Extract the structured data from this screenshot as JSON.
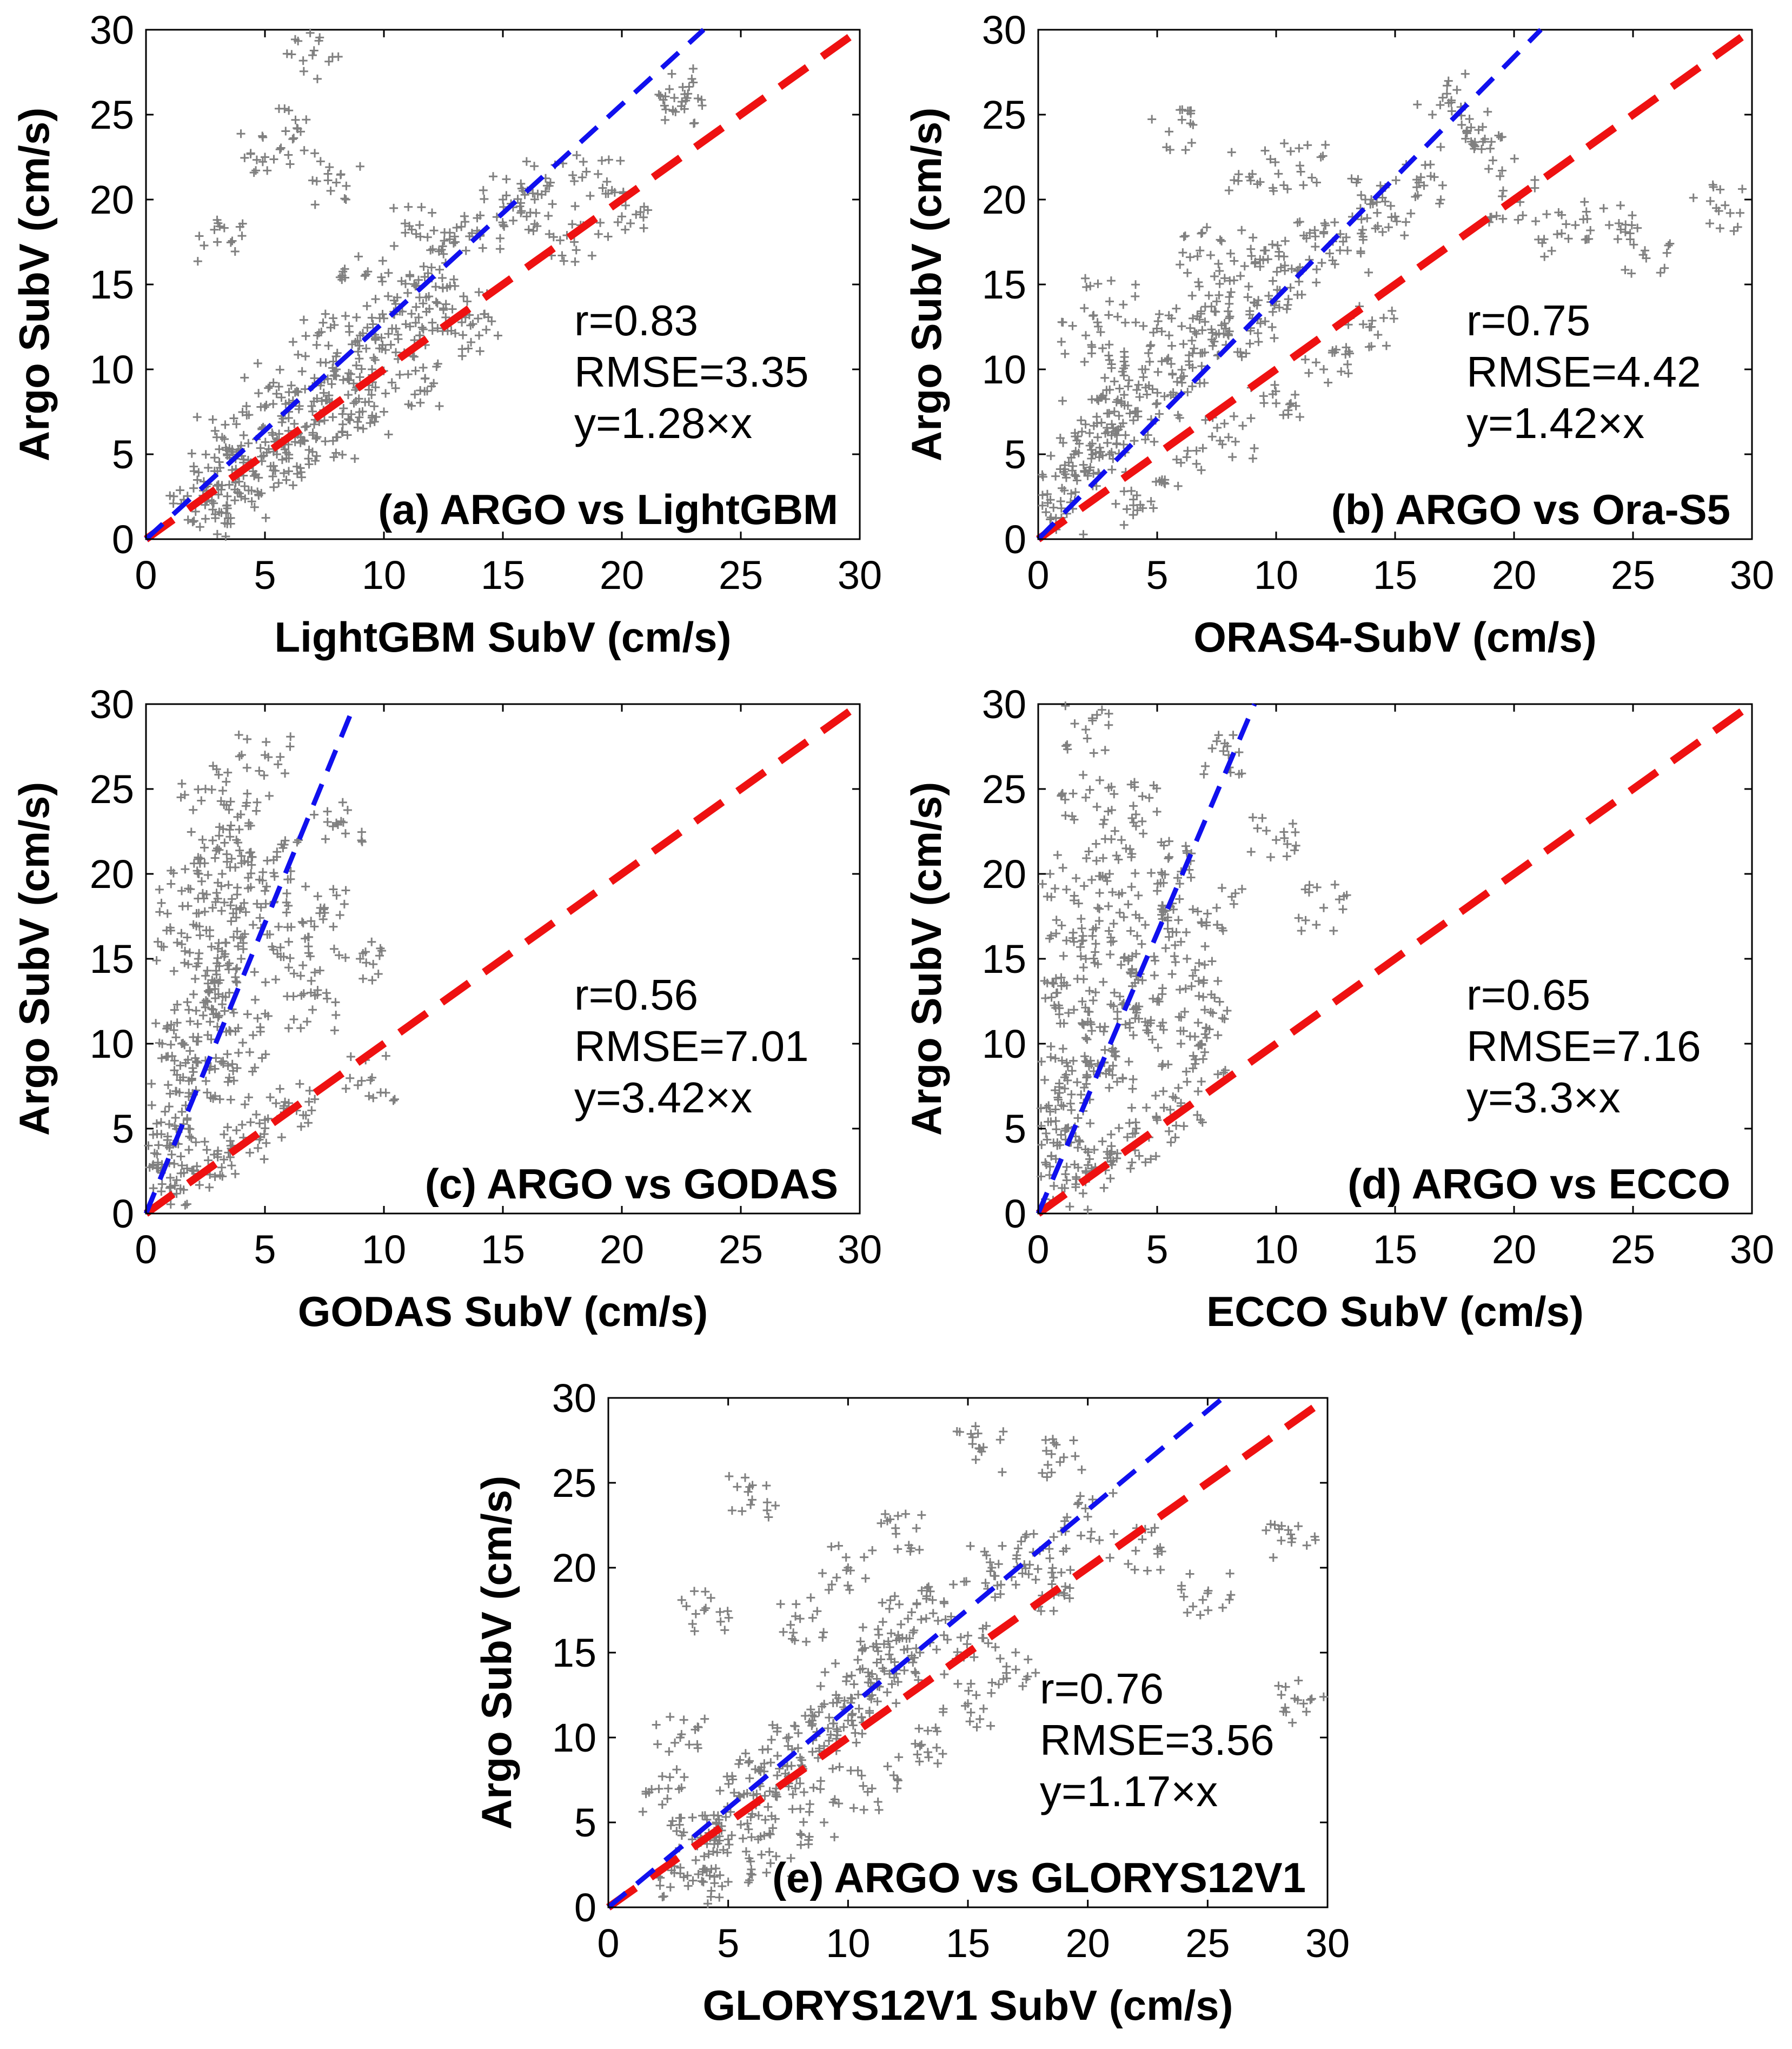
{
  "chart_data": [
    {
      "id": "a",
      "type": "scatter",
      "title": "(a) ARGO vs LightGBM",
      "xlabel": "LightGBM SubV (cm/s)",
      "ylabel": "Argo SubV (cm/s)",
      "xlim": [
        0,
        30
      ],
      "ylim": [
        0,
        30
      ],
      "xticks": [
        "0",
        "5",
        "10",
        "15",
        "20",
        "25",
        "30"
      ],
      "yticks": [
        "0",
        "5",
        "10",
        "15",
        "20",
        "25",
        "30"
      ],
      "stats": {
        "r": "r=0.83",
        "rmse": "RMSE=3.35",
        "fit": "y=1.28×x"
      },
      "fit_slope": 1.28,
      "identity_slope": 1.0,
      "colors": {
        "points": "#808080",
        "fit": "#1010ee",
        "identity": "#ee1111"
      },
      "points": [
        [
          2.0,
          3.0
        ],
        [
          2.5,
          2.2
        ],
        [
          3.0,
          4.0
        ],
        [
          3.5,
          3.2
        ],
        [
          4.0,
          5.5
        ],
        [
          4.5,
          4.0
        ],
        [
          5.0,
          6.5
        ],
        [
          5.5,
          5.0
        ],
        [
          6.0,
          7.5
        ],
        [
          6.5,
          6.0
        ],
        [
          7.0,
          9.0
        ],
        [
          7.5,
          7.0
        ],
        [
          8.0,
          10.0
        ],
        [
          8.5,
          8.5
        ],
        [
          9.0,
          12.0
        ],
        [
          9.5,
          10.0
        ],
        [
          10.0,
          13.0
        ],
        [
          10.5,
          11.0
        ],
        [
          11.0,
          14.5
        ],
        [
          11.5,
          12.0
        ],
        [
          12.0,
          16.0
        ],
        [
          12.5,
          13.5
        ],
        [
          13.0,
          17.5
        ],
        [
          13.5,
          14.0
        ],
        [
          14.0,
          18.0
        ],
        [
          15.0,
          20.0
        ],
        [
          16.0,
          19.0
        ],
        [
          17.0,
          21.0
        ],
        [
          18.0,
          17.5
        ],
        [
          19.0,
          21.5
        ],
        [
          20.0,
          19.0
        ],
        [
          22.0,
          26.5
        ],
        [
          22.5,
          25.5
        ],
        [
          3.0,
          17.5
        ],
        [
          5.0,
          22.5
        ],
        [
          6.5,
          24.0
        ],
        [
          7.0,
          28.5
        ],
        [
          8.0,
          21.0
        ],
        [
          2.5,
          1.2
        ],
        [
          4.0,
          2.5
        ],
        [
          6.0,
          4.0
        ],
        [
          8.0,
          6.0
        ],
        [
          10.0,
          7.5
        ],
        [
          12.0,
          9.0
        ],
        [
          14.0,
          12.0
        ],
        [
          3.2,
          6.0
        ],
        [
          5.2,
          9.0
        ],
        [
          7.2,
          12.0
        ],
        [
          9.2,
          15.5
        ],
        [
          11.5,
          18.5
        ]
      ]
    },
    {
      "id": "b",
      "type": "scatter",
      "title": "(b) ARGO vs Ora-S5",
      "xlabel": "ORAS4-SubV (cm/s)",
      "ylabel": "Argo SubV (cm/s)",
      "xlim": [
        0,
        30
      ],
      "ylim": [
        0,
        30
      ],
      "xticks": [
        "0",
        "5",
        "10",
        "15",
        "20",
        "25",
        "30"
      ],
      "yticks": [
        "0",
        "5",
        "10",
        "15",
        "20",
        "25",
        "30"
      ],
      "stats": {
        "r": "r=0.75",
        "rmse": "RMSE=4.42",
        "fit": "y=1.42×x"
      },
      "fit_slope": 1.42,
      "identity_slope": 1.0,
      "colors": {
        "points": "#808080",
        "fit": "#1010ee",
        "identity": "#ee1111"
      },
      "points": [
        [
          1.0,
          3.0
        ],
        [
          1.5,
          5.0
        ],
        [
          2.0,
          4.0
        ],
        [
          2.5,
          6.0
        ],
        [
          3.0,
          5.0
        ],
        [
          3.5,
          8.0
        ],
        [
          4.0,
          7.0
        ],
        [
          4.5,
          10.0
        ],
        [
          5.0,
          8.0
        ],
        [
          5.5,
          12.0
        ],
        [
          6.0,
          9.5
        ],
        [
          6.5,
          13.0
        ],
        [
          7.0,
          11.0
        ],
        [
          7.5,
          14.0
        ],
        [
          8.0,
          12.0
        ],
        [
          8.5,
          15.5
        ],
        [
          9.0,
          13.0
        ],
        [
          9.5,
          17.0
        ],
        [
          10.0,
          14.0
        ],
        [
          11.0,
          16.0
        ],
        [
          12.0,
          18.0
        ],
        [
          13.0,
          17.0
        ],
        [
          14.0,
          20.0
        ],
        [
          15.0,
          19.0
        ],
        [
          16.0,
          21.0
        ],
        [
          17.0,
          26.0
        ],
        [
          18.0,
          24.0
        ],
        [
          19.0,
          23.0
        ],
        [
          20.0,
          20.0
        ],
        [
          22.0,
          18.0
        ],
        [
          24.0,
          18.5
        ],
        [
          25.5,
          17.0
        ],
        [
          28.5,
          19.5
        ],
        [
          5.5,
          24.0
        ],
        [
          2.0,
          12.0
        ],
        [
          3.0,
          14.0
        ],
        [
          4.0,
          2.0
        ],
        [
          6.0,
          4.5
        ],
        [
          8.0,
          6.0
        ],
        [
          10.0,
          8.0
        ],
        [
          12.0,
          10.0
        ],
        [
          14.0,
          12.5
        ],
        [
          1.2,
          1.5
        ],
        [
          1.8,
          7.0
        ],
        [
          2.8,
          9.5
        ],
        [
          6.8,
          17.0
        ],
        [
          9.0,
          21.5
        ],
        [
          11.0,
          22.0
        ]
      ]
    },
    {
      "id": "c",
      "type": "scatter",
      "title": "(c) ARGO vs GODAS",
      "xlabel": "GODAS SubV (cm/s)",
      "ylabel": "Argo SubV (cm/s)",
      "xlim": [
        0,
        30
      ],
      "ylim": [
        0,
        30
      ],
      "xticks": [
        "0",
        "5",
        "10",
        "15",
        "20",
        "25",
        "30"
      ],
      "yticks": [
        "0",
        "5",
        "10",
        "15",
        "20",
        "25",
        "30"
      ],
      "stats": {
        "r": "r=0.56",
        "rmse": "RMSE=7.01",
        "fit": "y=3.42×x"
      },
      "fit_slope": 3.42,
      "identity_slope": 1.0,
      "colors": {
        "points": "#808080",
        "fit": "#1010ee",
        "identity": "#ee1111"
      },
      "points": [
        [
          0.5,
          3.0
        ],
        [
          0.8,
          6.0
        ],
        [
          1.0,
          4.0
        ],
        [
          1.2,
          9.0
        ],
        [
          1.5,
          5.0
        ],
        [
          1.8,
          12.0
        ],
        [
          2.0,
          7.0
        ],
        [
          2.2,
          15.0
        ],
        [
          2.5,
          9.0
        ],
        [
          2.8,
          18.0
        ],
        [
          3.0,
          11.0
        ],
        [
          3.2,
          20.0
        ],
        [
          3.5,
          13.0
        ],
        [
          3.8,
          22.0
        ],
        [
          4.0,
          15.0
        ],
        [
          4.2,
          24.0
        ],
        [
          4.5,
          17.0
        ],
        [
          5.0,
          19.0
        ],
        [
          5.5,
          21.0
        ],
        [
          6.0,
          16.0
        ],
        [
          6.5,
          14.0
        ],
        [
          7.0,
          12.0
        ],
        [
          7.5,
          18.0
        ],
        [
          8.0,
          23.0
        ],
        [
          9.0,
          15.0
        ],
        [
          9.5,
          8.0
        ],
        [
          2.5,
          25.0
        ],
        [
          5.0,
          27.0
        ],
        [
          1.0,
          1.5
        ],
        [
          2.0,
          2.5
        ],
        [
          3.0,
          3.5
        ],
        [
          4.0,
          4.0
        ],
        [
          5.0,
          5.5
        ],
        [
          6.0,
          6.5
        ],
        [
          1.5,
          10.0
        ],
        [
          2.5,
          14.0
        ],
        [
          3.5,
          8.0
        ],
        [
          4.5,
          10.5
        ],
        [
          0.5,
          16.0
        ],
        [
          1.5,
          19.0
        ],
        [
          3.0,
          21.5
        ],
        [
          4.0,
          18.0
        ]
      ]
    },
    {
      "id": "d",
      "type": "scatter",
      "title": "(d) ARGO vs ECCO",
      "xlabel": "ECCO SubV (cm/s)",
      "ylabel": "Argo SubV (cm/s)",
      "xlim": [
        0,
        30
      ],
      "ylim": [
        0,
        30
      ],
      "xticks": [
        "0",
        "5",
        "10",
        "15",
        "20",
        "25",
        "30"
      ],
      "yticks": [
        "0",
        "5",
        "10",
        "15",
        "20",
        "25",
        "30"
      ],
      "stats": {
        "r": "r=0.65",
        "rmse": "RMSE=7.16",
        "fit": "y=3.3×x"
      },
      "fit_slope": 3.3,
      "identity_slope": 1.0,
      "colors": {
        "points": "#808080",
        "fit": "#1010ee",
        "identity": "#ee1111"
      },
      "points": [
        [
          0.3,
          3.0
        ],
        [
          0.5,
          6.0
        ],
        [
          0.8,
          4.0
        ],
        [
          1.0,
          9.0
        ],
        [
          1.2,
          5.0
        ],
        [
          1.5,
          12.0
        ],
        [
          1.8,
          7.0
        ],
        [
          2.0,
          15.0
        ],
        [
          2.2,
          9.0
        ],
        [
          2.5,
          18.0
        ],
        [
          2.8,
          11.0
        ],
        [
          3.0,
          20.0
        ],
        [
          3.2,
          13.0
        ],
        [
          3.5,
          22.0
        ],
        [
          3.8,
          15.0
        ],
        [
          4.0,
          24.0
        ],
        [
          4.5,
          17.0
        ],
        [
          5.0,
          19.0
        ],
        [
          5.5,
          21.0
        ],
        [
          6.0,
          16.0
        ],
        [
          6.5,
          14.0
        ],
        [
          7.0,
          12.0
        ],
        [
          7.5,
          18.0
        ],
        [
          8.0,
          27.0
        ],
        [
          10.0,
          22.0
        ],
        [
          12.0,
          18.0
        ],
        [
          2.0,
          28.5
        ],
        [
          2.0,
          24.5
        ],
        [
          0.5,
          20.0
        ],
        [
          1.0,
          1.5
        ],
        [
          2.0,
          2.5
        ],
        [
          3.0,
          3.5
        ],
        [
          4.0,
          4.0
        ],
        [
          5.0,
          5.5
        ],
        [
          6.0,
          6.5
        ],
        [
          7.0,
          9.5
        ],
        [
          0.8,
          13.0
        ],
        [
          1.5,
          16.0
        ],
        [
          3.0,
          8.5
        ],
        [
          4.0,
          10.5
        ],
        [
          5.0,
          12.5
        ],
        [
          6.0,
          10.0
        ]
      ]
    },
    {
      "id": "e",
      "type": "scatter",
      "title": "(e) ARGO vs GLORYS12V1",
      "xlabel": "GLORYS12V1 SubV (cm/s)",
      "ylabel": "Argo SubV (cm/s)",
      "xlim": [
        0,
        30
      ],
      "ylim": [
        0,
        30
      ],
      "xticks": [
        "0",
        "5",
        "10",
        "15",
        "20",
        "25",
        "30"
      ],
      "yticks": [
        "0",
        "5",
        "10",
        "15",
        "20",
        "25",
        "30"
      ],
      "stats": {
        "r": "r=0.76",
        "rmse": "RMSE=3.56",
        "fit": "y=1.17×x"
      },
      "fit_slope": 1.17,
      "identity_slope": 1.0,
      "colors": {
        "points": "#808080",
        "fit": "#1010ee",
        "identity": "#ee1111"
      },
      "points": [
        [
          3.0,
          2.0
        ],
        [
          3.5,
          4.0
        ],
        [
          4.0,
          3.0
        ],
        [
          4.5,
          5.0
        ],
        [
          5.0,
          4.0
        ],
        [
          5.5,
          6.5
        ],
        [
          6.0,
          5.5
        ],
        [
          6.5,
          8.0
        ],
        [
          7.0,
          7.0
        ],
        [
          7.5,
          9.5
        ],
        [
          8.0,
          8.0
        ],
        [
          8.5,
          11.0
        ],
        [
          9.0,
          9.5
        ],
        [
          9.5,
          12.5
        ],
        [
          10.0,
          11.0
        ],
        [
          10.5,
          14.0
        ],
        [
          11.0,
          12.5
        ],
        [
          11.5,
          15.5
        ],
        [
          12.0,
          14.0
        ],
        [
          12.5,
          17.0
        ],
        [
          13.0,
          15.0
        ],
        [
          14.0,
          18.0
        ],
        [
          15.0,
          16.0
        ],
        [
          16.0,
          20.0
        ],
        [
          17.0,
          19.0
        ],
        [
          18.0,
          21.0
        ],
        [
          19.0,
          18.5
        ],
        [
          20.0,
          23.0
        ],
        [
          22.0,
          21.0
        ],
        [
          25.0,
          18.5
        ],
        [
          28.5,
          21.5
        ],
        [
          29.0,
          12.0
        ],
        [
          15.5,
          27.0
        ],
        [
          19.0,
          26.5
        ],
        [
          6.0,
          24.0
        ],
        [
          4.0,
          17.5
        ],
        [
          3.0,
          10.0
        ],
        [
          2.5,
          7.0
        ],
        [
          5.0,
          1.5
        ],
        [
          7.0,
          3.0
        ],
        [
          9.0,
          5.0
        ],
        [
          11.0,
          7.0
        ],
        [
          13.0,
          9.5
        ],
        [
          15.0,
          12.0
        ],
        [
          17.0,
          14.0
        ],
        [
          8.0,
          17.0
        ],
        [
          10.0,
          20.0
        ],
        [
          12.0,
          22.0
        ]
      ]
    }
  ]
}
